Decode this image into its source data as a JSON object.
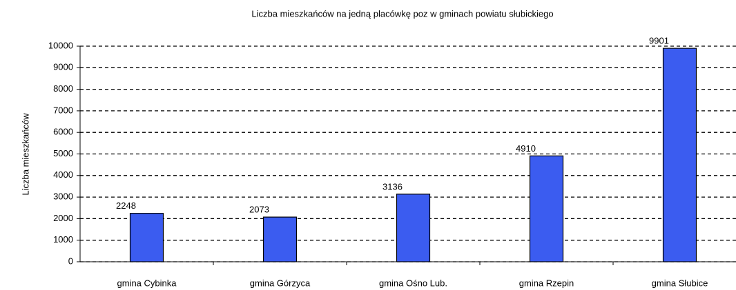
{
  "chart_data": {
    "type": "bar",
    "title": "Liczba mieszkańców na jedną placówkę poz w gminach powiatu słubickiego",
    "y_label": "Liczba mieszkańców",
    "categories": [
      "gmina Cybinka",
      "gmina Górzyca",
      "gmina Ośno Lub.",
      "gmina Rzepin",
      "gmina Słubice"
    ],
    "values": [
      2248,
      2073,
      3136,
      4910,
      9901
    ],
    "color": "#3b5cf0",
    "ylim": [
      0,
      10000
    ],
    "yticks": [
      0,
      1000,
      2000,
      3000,
      4000,
      5000,
      6000,
      7000,
      8000,
      9000,
      10000
    ],
    "grid": true
  }
}
